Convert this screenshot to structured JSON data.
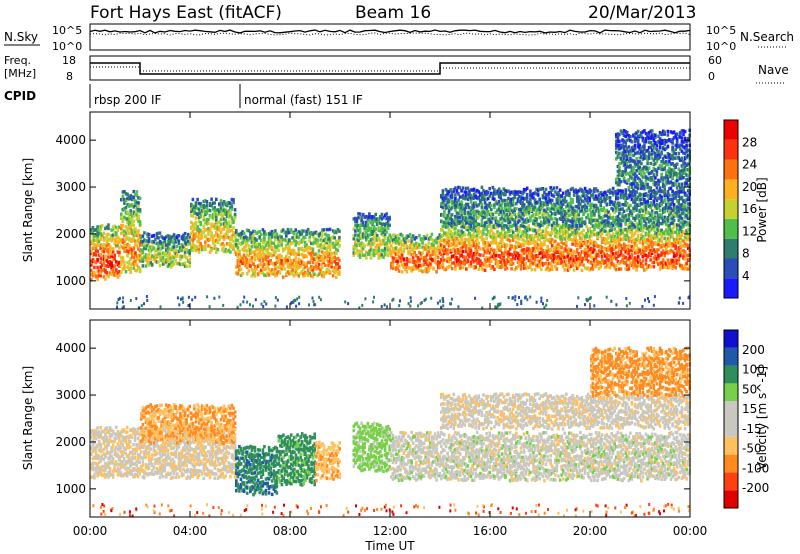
{
  "header": {
    "station": "Fort Hays East (fitACF)",
    "beam": "Beam 16",
    "date": "20/Mar/2013"
  },
  "panels": {
    "nsky_label": "N.Sky",
    "nsearch_label": "N.Search",
    "nsky_ticks": [
      "10^5",
      "10^0"
    ],
    "nsearch_ticks": [
      "10^5",
      "10^0"
    ],
    "freq_label": "Freq.",
    "freq_unit": "[MHz]",
    "freq_ticks": [
      "18",
      "8"
    ],
    "nave_label": "Nave",
    "nave_ticks": [
      "60",
      "0"
    ],
    "cpid_label": "CPID",
    "cpid_segments": [
      {
        "start_h": 0,
        "end_h": 6,
        "label": "rbsp 200 IF"
      },
      {
        "start_h": 6,
        "end_h": 24,
        "label": "normal (fast) 151 IF"
      }
    ]
  },
  "colors": {
    "power": [
      "#1a1aff",
      "#2a4db8",
      "#2e7d6f",
      "#4fbe4a",
      "#c8d030",
      "#ffb020",
      "#ff7010",
      "#ff3010",
      "#ee0000"
    ],
    "velocity": [
      "#e00000",
      "#ff4010",
      "#ff8a20",
      "#ffc060",
      "#c8c8c0",
      "#c8c8c0",
      "#78d04a",
      "#2e8f5a",
      "#1e5aa8",
      "#1010d0"
    ]
  },
  "chart_data": [
    {
      "type": "heatmap",
      "panel": "power",
      "ylabel": "Slant Range [km]",
      "ylim": [
        400,
        4600
      ],
      "yticks": [
        1000,
        2000,
        3000,
        4000
      ],
      "xlim": [
        0,
        24
      ],
      "colorbar_label": "Power [dB]",
      "colorbar_ticks": [
        "28",
        "24",
        "20",
        "16",
        "12",
        "8",
        "4"
      ],
      "bands": [
        {
          "start": 0.0,
          "end": 1.2,
          "low": 1050,
          "high": 2200,
          "level": 0.75
        },
        {
          "start": 1.2,
          "end": 2.0,
          "low": 1200,
          "high": 2900,
          "level": 0.6
        },
        {
          "start": 2.0,
          "end": 4.0,
          "low": 1300,
          "high": 2000,
          "level": 0.45
        },
        {
          "start": 4.0,
          "end": 5.8,
          "low": 1600,
          "high": 2700,
          "level": 0.55
        },
        {
          "start": 5.8,
          "end": 10.0,
          "low": 1100,
          "high": 2100,
          "level": 0.62
        },
        {
          "start": 10.5,
          "end": 12.0,
          "low": 1500,
          "high": 2400,
          "level": 0.45
        },
        {
          "start": 12.0,
          "end": 14.0,
          "low": 1200,
          "high": 2000,
          "level": 0.7
        },
        {
          "start": 14.0,
          "end": 24.0,
          "low": 1250,
          "high": 2200,
          "level": 0.72
        },
        {
          "start": 14.0,
          "end": 24.0,
          "low": 2200,
          "high": 3000,
          "level": 0.3
        },
        {
          "start": 21.0,
          "end": 24.0,
          "low": 3000,
          "high": 4200,
          "level": 0.25
        }
      ]
    },
    {
      "type": "heatmap",
      "panel": "velocity",
      "ylabel": "Slant Range [km]",
      "ylim": [
        400,
        4600
      ],
      "yticks": [
        1000,
        2000,
        3000,
        4000
      ],
      "xlim": [
        0,
        24
      ],
      "xticks": [
        "00:00",
        "04:00",
        "08:00",
        "12:00",
        "16:00",
        "20:00",
        "00:00"
      ],
      "xlabel": "Time UT",
      "colorbar_label": "Velocity [m s^-1]",
      "colorbar_ticks": [
        "200",
        "100",
        "50",
        "15",
        "-15",
        "-50",
        "-100",
        "-200"
      ],
      "bands": [
        {
          "start": 0.0,
          "end": 5.8,
          "low": 1250,
          "high": 2300,
          "vel": -10
        },
        {
          "start": 2.0,
          "end": 5.8,
          "low": 2000,
          "high": 2800,
          "vel": -50
        },
        {
          "start": 5.8,
          "end": 7.5,
          "low": 900,
          "high": 1900,
          "vel": 90
        },
        {
          "start": 7.5,
          "end": 9.0,
          "low": 1100,
          "high": 2150,
          "vel": 60
        },
        {
          "start": 9.0,
          "end": 10.0,
          "low": 1200,
          "high": 2000,
          "vel": -40
        },
        {
          "start": 10.5,
          "end": 12.0,
          "low": 1400,
          "high": 2400,
          "vel": 30
        },
        {
          "start": 12.0,
          "end": 24.0,
          "low": 1200,
          "high": 2200,
          "vel": 0
        },
        {
          "start": 14.0,
          "end": 24.0,
          "low": 2300,
          "high": 3000,
          "vel": -5
        },
        {
          "start": 20.0,
          "end": 24.0,
          "low": 3000,
          "high": 4000,
          "vel": -60
        }
      ]
    }
  ]
}
